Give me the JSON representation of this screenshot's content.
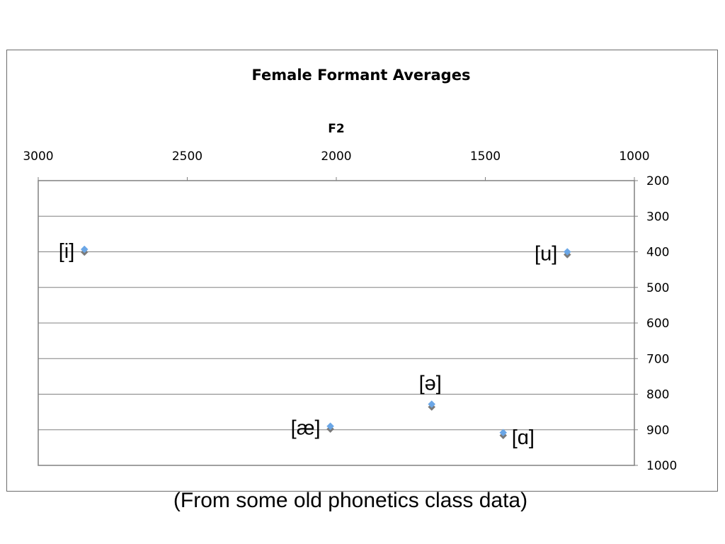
{
  "chart_data": {
    "type": "scatter",
    "title": "Female Formant Averages",
    "xlabel": "F2",
    "ylabel": "",
    "xlim": [
      3000,
      1000
    ],
    "ylim": [
      200,
      1000
    ],
    "x_reversed": true,
    "y_reversed": true,
    "x_ticks": [
      3000,
      2500,
      2000,
      1500,
      1000
    ],
    "y_ticks": [
      200,
      300,
      400,
      500,
      600,
      700,
      800,
      900,
      1000
    ],
    "x_axis_position": "top",
    "y_axis_position": "right",
    "grid": "horizontal",
    "legend": "none",
    "series": [
      {
        "color": "#6aa6e6",
        "points": [
          {
            "x": 2845,
            "y": 393
          },
          {
            "x": 1225,
            "y": 400
          },
          {
            "x": 1680,
            "y": 828
          },
          {
            "x": 2020,
            "y": 890
          },
          {
            "x": 1440,
            "y": 908
          }
        ]
      },
      {
        "color": "#7a7a7a",
        "points": [
          {
            "x": 2845,
            "y": 401
          },
          {
            "x": 1225,
            "y": 408
          },
          {
            "x": 1680,
            "y": 836
          },
          {
            "x": 2020,
            "y": 898
          },
          {
            "x": 1440,
            "y": 916
          }
        ]
      }
    ],
    "annotations": [
      {
        "text": "[i]",
        "x": 2845,
        "y": 397,
        "side": "left"
      },
      {
        "text": "[u]",
        "x": 1225,
        "y": 404,
        "side": "left"
      },
      {
        "text": "[ə]",
        "x": 1680,
        "y": 832,
        "side": "above"
      },
      {
        "text": "[æ]",
        "x": 2020,
        "y": 894,
        "side": "left"
      },
      {
        "text": "[ɑ]",
        "x": 1440,
        "y": 912,
        "side": "right"
      }
    ]
  },
  "caption": "(From some old phonetics class data)"
}
